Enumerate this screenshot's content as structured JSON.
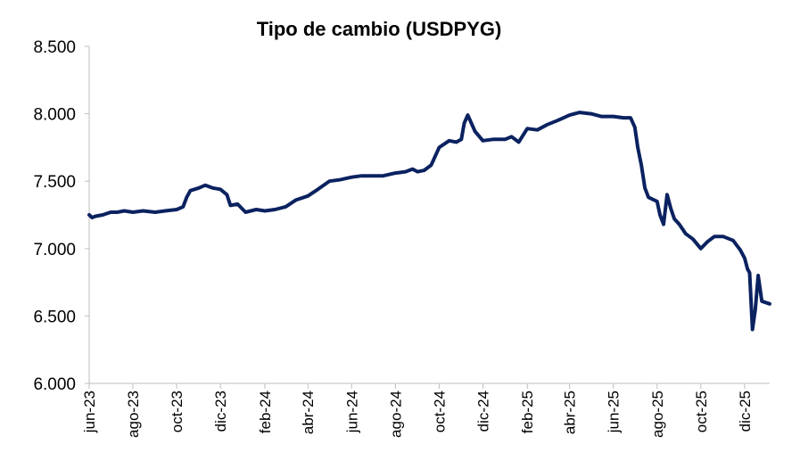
{
  "chart_data": {
    "type": "line",
    "title": "Tipo de cambio (USDPYG)",
    "xlabel": "",
    "ylabel": "",
    "ylim": [
      6000,
      8500
    ],
    "yticks": [
      "6.000",
      "6.500",
      "7.000",
      "7.500",
      "8.000",
      "8.500"
    ],
    "yvalues": [
      6000,
      6500,
      7000,
      7500,
      8000,
      8500
    ],
    "xticks": [
      "jun-23",
      "ago-23",
      "oct-23",
      "dic-23",
      "feb-24",
      "abr-24",
      "jun-24",
      "ago-24",
      "oct-24",
      "dic-24",
      "feb-25",
      "abr-25",
      "jun-25",
      "ago-25",
      "oct-25",
      "dic-25"
    ],
    "grid": false,
    "legend": "none",
    "line_color": "#0b2260",
    "series": [
      {
        "x": [
          "2023-06-01",
          "2023-06-05",
          "2023-06-10",
          "2023-06-20",
          "2023-07-01",
          "2023-07-10",
          "2023-07-20",
          "2023-08-01",
          "2023-08-15",
          "2023-09-01",
          "2023-09-15",
          "2023-10-01",
          "2023-10-10",
          "2023-10-15",
          "2023-10-20",
          "2023-11-01",
          "2023-11-10",
          "2023-11-20",
          "2023-12-01",
          "2023-12-10",
          "2023-12-15",
          "2023-12-25",
          "2024-01-05",
          "2024-01-20",
          "2024-02-01",
          "2024-02-15",
          "2024-03-01",
          "2024-03-15",
          "2024-04-01",
          "2024-04-15",
          "2024-05-01",
          "2024-05-15",
          "2024-06-01",
          "2024-06-15",
          "2024-07-01",
          "2024-07-15",
          "2024-08-01",
          "2024-08-15",
          "2024-08-25",
          "2024-09-01",
          "2024-09-10",
          "2024-09-20",
          "2024-10-01",
          "2024-10-15",
          "2024-10-25",
          "2024-11-01",
          "2024-11-05",
          "2024-11-10",
          "2024-11-20",
          "2024-12-01",
          "2024-12-15",
          "2025-01-01",
          "2025-01-10",
          "2025-01-20",
          "2025-02-01",
          "2025-02-15",
          "2025-03-01",
          "2025-03-15",
          "2025-04-01",
          "2025-04-15",
          "2025-05-01",
          "2025-05-15",
          "2025-06-01",
          "2025-06-15",
          "2025-06-20",
          "2025-06-25",
          "2025-07-01",
          "2025-07-05",
          "2025-07-10",
          "2025-07-15",
          "2025-07-20",
          "2025-08-01",
          "2025-08-05",
          "2025-08-10",
          "2025-08-15",
          "2025-08-20",
          "2025-08-25",
          "2025-09-01",
          "2025-09-10",
          "2025-09-20",
          "2025-10-01",
          "2025-10-10",
          "2025-10-20",
          "2025-11-01",
          "2025-11-15",
          "2025-11-25",
          "2025-12-01",
          "2025-12-05",
          "2025-12-08",
          "2025-12-12",
          "2025-12-16",
          "2025-12-20",
          "2025-12-25",
          "2026-01-05"
        ],
        "values": [
          7250,
          7230,
          7240,
          7250,
          7270,
          7270,
          7280,
          7270,
          7280,
          7270,
          7280,
          7290,
          7310,
          7380,
          7430,
          7450,
          7470,
          7450,
          7440,
          7400,
          7320,
          7330,
          7270,
          7290,
          7280,
          7290,
          7310,
          7360,
          7390,
          7440,
          7500,
          7510,
          7530,
          7540,
          7540,
          7540,
          7560,
          7570,
          7590,
          7570,
          7580,
          7620,
          7750,
          7800,
          7790,
          7810,
          7930,
          7990,
          7870,
          7800,
          7810,
          7810,
          7830,
          7790,
          7890,
          7880,
          7920,
          7950,
          7990,
          8010,
          8000,
          7980,
          7980,
          7970,
          7970,
          7970,
          7900,
          7750,
          7620,
          7450,
          7380,
          7350,
          7250,
          7180,
          7400,
          7300,
          7220,
          7180,
          7110,
          7070,
          7000,
          7050,
          7090,
          7090,
          7060,
          6990,
          6930,
          6850,
          6820,
          6400,
          6550,
          6800,
          6610,
          6590
        ]
      }
    ]
  }
}
